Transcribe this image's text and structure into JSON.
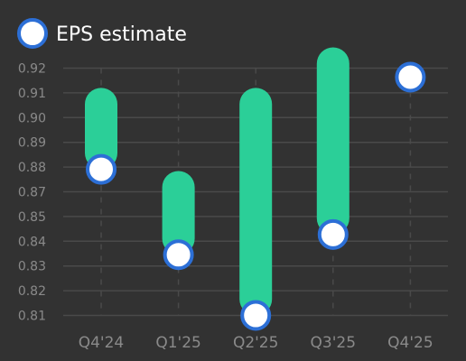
{
  "chart_data": {
    "type": "range-bar",
    "legend": {
      "label": "EPS estimate",
      "placement": "top-left"
    },
    "categories": [
      "Q4'24",
      "Q1'25",
      "Q2'25",
      "Q3'25",
      "Q4'25"
    ],
    "series": [
      {
        "name": "EPS estimate",
        "values": [
          0.875,
          0.837,
          0.81,
          0.846,
          0.916
        ]
      }
    ],
    "ranges": [
      {
        "low": 0.875,
        "high": 0.904
      },
      {
        "low": 0.837,
        "high": 0.867
      },
      {
        "low": 0.81,
        "high": 0.904
      },
      {
        "low": 0.846,
        "high": 0.922
      },
      null
    ],
    "y_ticks": [
      "0.81",
      "0.82",
      "0.83",
      "0.84",
      "0.85",
      "0.87",
      "0.88",
      "0.89",
      "0.90",
      "0.91",
      "0.92"
    ],
    "ylim": [
      0.81,
      0.92
    ],
    "grid": true,
    "colors": {
      "background": "#323232",
      "range_bar": "#2bcf98",
      "marker_fill": "#ffffff",
      "marker_stroke": "#2c6fd6",
      "grid": "#4a4a4a",
      "tick_text": "#8a8a8a",
      "legend_text": "#ffffff"
    }
  }
}
